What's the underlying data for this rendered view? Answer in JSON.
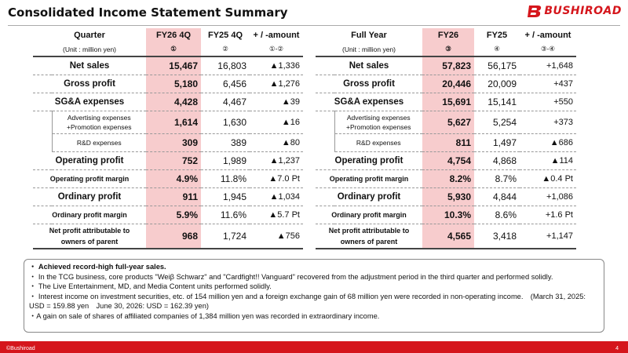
{
  "title": "Consolidated Income Statement Summary",
  "logo_text": "BUSHIROAD",
  "brand_color": "#d5161c",
  "highlight_color": "#f7cccd",
  "quarter_table": {
    "h_label": "Quarter",
    "h_unit": "(Unit : million yen)",
    "h_cur": "FY26 4Q",
    "h_prev": "FY25 4Q",
    "h_diff": "+ / -amount",
    "c_cur": "①",
    "c_prev": "②",
    "c_diff": "①-②",
    "rows": [
      {
        "label": "Net sales",
        "cur": "15,467",
        "prev": "16,803",
        "diff": "▲1,336"
      },
      {
        "label": "Gross profit",
        "cur": "5,180",
        "prev": "6,456",
        "diff": "▲1,276"
      },
      {
        "label": "SG&A expenses",
        "cur": "4,428",
        "prev": "4,467",
        "diff": "▲39"
      },
      {
        "label1": "Advertising expenses",
        "label2": "+Promotion expenses",
        "cur": "1,614",
        "prev": "1,630",
        "diff": "▲16"
      },
      {
        "label": "R&D expenses",
        "cur": "309",
        "prev": "389",
        "diff": "▲80"
      },
      {
        "label": "Operating profit",
        "cur": "752",
        "prev": "1,989",
        "diff": "▲1,237"
      },
      {
        "label": "Operating profit margin",
        "cur": "4.9%",
        "prev": "11.8%",
        "diff": "▲7.0 Pt"
      },
      {
        "label": "Ordinary profit",
        "cur": "911",
        "prev": "1,945",
        "diff": "▲1,034"
      },
      {
        "label": "Ordinary profit margin",
        "cur": "5.9%",
        "prev": "11.6%",
        "diff": "▲5.7 Pt"
      },
      {
        "label1": "Net profit attributable to",
        "label2": "owners of parent",
        "cur": "968",
        "prev": "1,724",
        "diff": "▲756"
      }
    ]
  },
  "fullyear_table": {
    "h_label": "Full Year",
    "h_unit": "(Unit : million yen)",
    "h_cur": "FY26",
    "h_prev": "FY25",
    "h_diff": "+ / -amount",
    "c_cur": "③",
    "c_prev": "④",
    "c_diff": "③-④",
    "rows": [
      {
        "label": "Net sales",
        "cur": "57,823",
        "prev": "56,175",
        "diff": "+1,648"
      },
      {
        "label": "Gross profit",
        "cur": "20,446",
        "prev": "20,009",
        "diff": "+437"
      },
      {
        "label": "SG&A expenses",
        "cur": "15,691",
        "prev": "15,141",
        "diff": "+550"
      },
      {
        "label1": "Advertising expenses",
        "label2": "+Promotion expenses",
        "cur": "5,627",
        "prev": "5,254",
        "diff": "+373"
      },
      {
        "label": "R&D expenses",
        "cur": "811",
        "prev": "1,497",
        "diff": "▲686"
      },
      {
        "label": "Operating profit",
        "cur": "4,754",
        "prev": "4,868",
        "diff": "▲114"
      },
      {
        "label": "Operating profit margin",
        "cur": "8.2%",
        "prev": "8.7%",
        "diff": "▲0.4 Pt"
      },
      {
        "label": "Ordinary profit",
        "cur": "5,930",
        "prev": "4,844",
        "diff": "+1,086"
      },
      {
        "label": "Ordinary profit margin",
        "cur": "10.3%",
        "prev": "8.6%",
        "diff": "+1.6 Pt"
      },
      {
        "label1": "Net profit attributable to",
        "label2": "owners of parent",
        "cur": "4,565",
        "prev": "3,418",
        "diff": "+1,147"
      }
    ]
  },
  "notes": [
    "・ Achieved record-high full-year sales.",
    "・ In the TCG business, core products \"Weiβ Schwarz\" and \"Cardfight!! Vanguard\" recovered from the adjustment period in the third quarter and performed solidly.",
    "・ The Live Entertainment, MD, and Media Content units performed solidly.",
    "・ Interest income on investment securities, etc. of 154 million yen and a foreign exchange gain of 68 million yen were recorded in non-operating income.　(March 31, 2025: USD = 159.88 yen　June 30, 2026: USD = 162.39 yen)",
    "・A gain on sale of shares of affiliated companies of 1,384 million yen was recorded in extraordinary income."
  ],
  "footer": {
    "copyright": "©Bushiroad",
    "page": "4"
  }
}
